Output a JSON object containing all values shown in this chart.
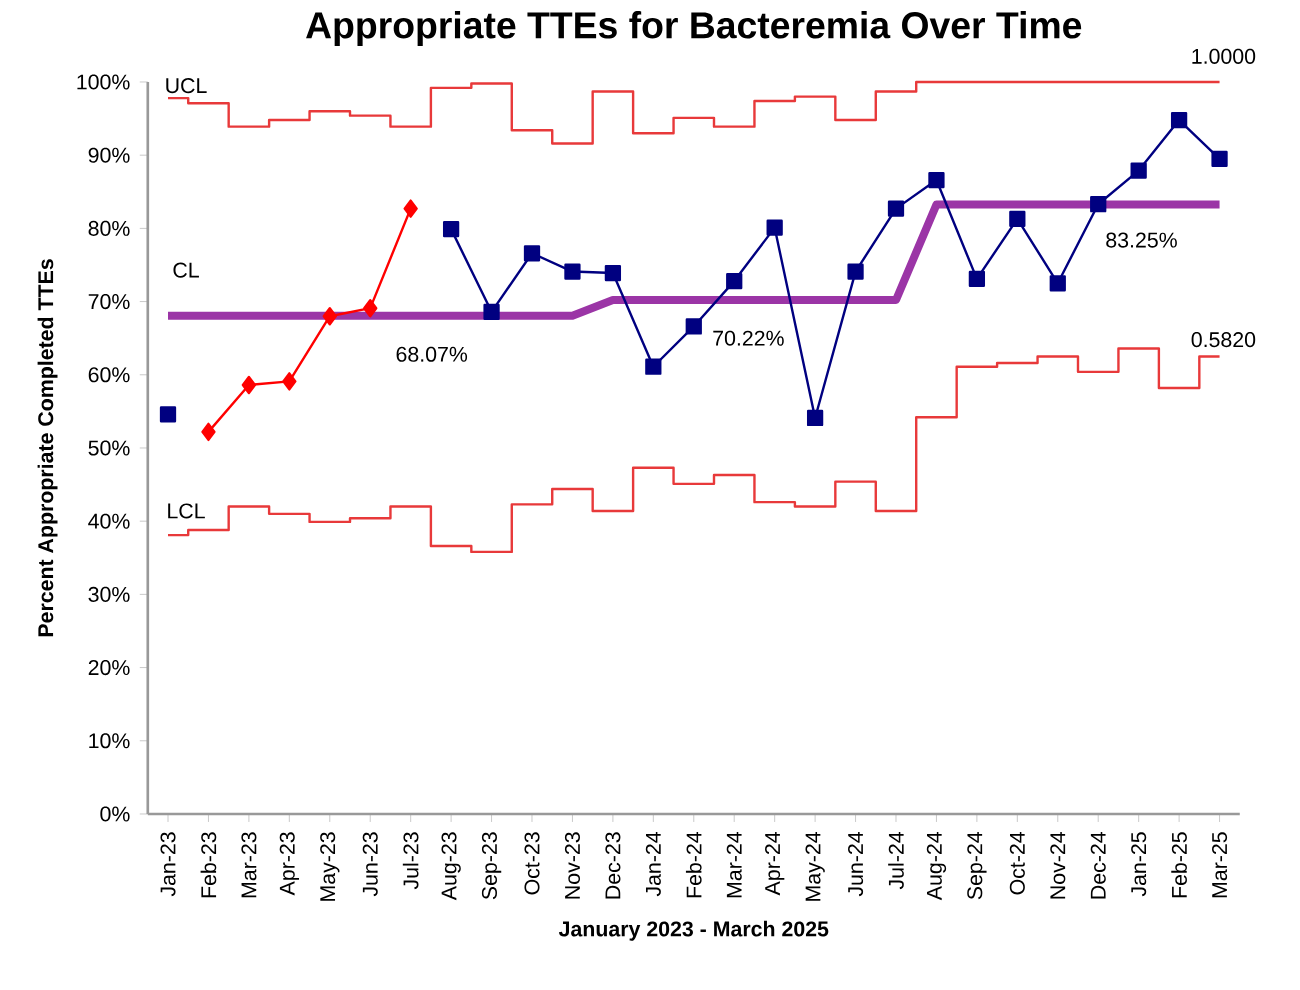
{
  "chart_data": {
    "type": "line",
    "title": "Appropriate TTEs for Bacteremia Over Time",
    "xlabel": "January 2023 - March 2025",
    "ylabel": "Percent Appropriate  Completed TTEs",
    "categories": [
      "Jan-23",
      "Feb-23",
      "Mar-23",
      "Apr-23",
      "May-23",
      "Jun-23",
      "Jul-23",
      "Aug-23",
      "Sep-23",
      "Oct-23",
      "Nov-23",
      "Dec-23",
      "Jan-24",
      "Feb-24",
      "Mar-24",
      "Apr-24",
      "May-24",
      "Jun-24",
      "Jul-24",
      "Aug-24",
      "Sep-24",
      "Oct-24",
      "Nov-24",
      "Dec-24",
      "Jan-25",
      "Feb-25",
      "Mar-25"
    ],
    "series": [
      {
        "type": "step",
        "color": "#e8393a",
        "values": [
          97.8,
          97.1,
          93.9,
          94.8,
          96.0,
          95.4,
          93.9,
          99.2,
          99.8,
          93.4,
          91.6,
          98.7,
          93.0,
          95.1,
          93.9,
          97.4,
          98.0,
          94.8,
          98.7,
          100,
          100,
          100,
          100,
          100,
          100,
          100,
          100
        ]
      },
      {
        "type": "step",
        "color": "#e8393a",
        "values": [
          38.1,
          38.8,
          42.0,
          41.0,
          39.9,
          40.4,
          42.0,
          36.6,
          35.8,
          42.3,
          44.4,
          41.4,
          47.3,
          45.1,
          46.3,
          42.6,
          42.0,
          45.4,
          41.4,
          54.2,
          61.1,
          61.6,
          62.5,
          60.4,
          63.6,
          58.2,
          62.5
        ]
      },
      {
        "color": "#9b35a6",
        "values": [
          68.07,
          68.07,
          68.07,
          68.07,
          68.07,
          68.07,
          68.07,
          68.07,
          68.07,
          68.07,
          68.07,
          70.22,
          70.22,
          70.22,
          70.22,
          70.22,
          70.22,
          70.22,
          70.22,
          83.25,
          83.25,
          83.25,
          83.25,
          83.25,
          83.25,
          83.25,
          83.25
        ]
      },
      {
        "color": "#000080",
        "marker": "square",
        "values": [
          54.6,
          null,
          null,
          null,
          null,
          null,
          null,
          79.9,
          68.6,
          76.6,
          74.1,
          73.9,
          61.1,
          66.6,
          72.8,
          80.1,
          54.1,
          74.1,
          82.7,
          86.6,
          73.1,
          81.3,
          72.5,
          83.3,
          87.9,
          94.8,
          89.5
        ]
      },
      {
        "color": "#ff0000",
        "marker": "diamond",
        "values": [
          null,
          52.2,
          58.6,
          59.1,
          68.0,
          69.1,
          82.7,
          null,
          null,
          null,
          null,
          null,
          null,
          null,
          null,
          null,
          null,
          null,
          null,
          null,
          null,
          null,
          null,
          null,
          null,
          null,
          null
        ]
      }
    ],
    "ylim": [
      0,
      100
    ],
    "yticks": [
      {
        "value": 0,
        "label": "0%"
      },
      {
        "value": 10,
        "label": "10%"
      },
      {
        "value": 20,
        "label": "20%"
      },
      {
        "value": 30,
        "label": "30%"
      },
      {
        "value": 40,
        "label": "40%"
      },
      {
        "value": 50,
        "label": "50%"
      },
      {
        "value": 60,
        "label": "60%"
      },
      {
        "value": 70,
        "label": "70%"
      },
      {
        "value": 80,
        "label": "80%"
      },
      {
        "value": 90,
        "label": "90%"
      },
      {
        "value": 100,
        "label": "100%"
      }
    ],
    "grid": false,
    "annotations": [
      "UCL",
      "CL",
      "LCL",
      "68.07%",
      "70.22%",
      "83.25%",
      "0.5820",
      "1.0000"
    ]
  }
}
